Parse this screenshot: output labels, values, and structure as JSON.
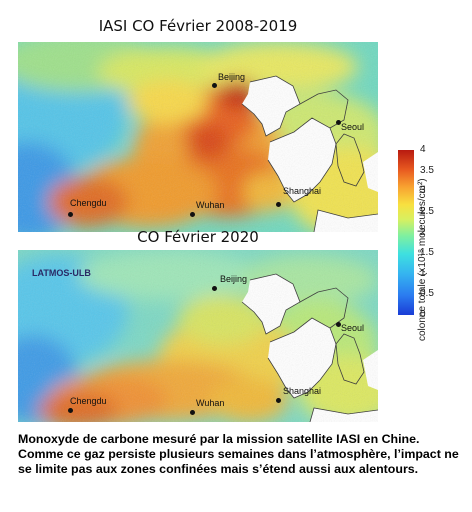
{
  "maps": [
    {
      "title": "IASI CO Février 2008-2019",
      "cities": [
        {
          "name": "Beijing"
        },
        {
          "name": "Seoul"
        },
        {
          "name": "Shanghai"
        },
        {
          "name": "Chengdu"
        },
        {
          "name": "Wuhan"
        }
      ]
    },
    {
      "title": "CO Février 2020",
      "watermark": "LATMOS-ULB",
      "cities": [
        {
          "name": "Beijing"
        },
        {
          "name": "Seoul"
        },
        {
          "name": "Shanghai"
        },
        {
          "name": "Chengdu"
        },
        {
          "name": "Wuhan"
        }
      ]
    }
  ],
  "colorbar": {
    "ticks": [
      "0",
      "0.5",
      "1",
      "1.5",
      "2",
      "2.5",
      "3",
      "3.5",
      "4"
    ],
    "label": "colonne totale (x10¹⁸ molecules/cm²)",
    "range": [
      0,
      4
    ]
  },
  "caption": "Monoxyde de carbone mesuré par la mission satellite IASI en Chine. Comme ce gaz persiste plusieurs semaines dans l’atmosphère, l’impact ne se limite pas aux zones confinées mais s’étend aussi aux alentours."
}
